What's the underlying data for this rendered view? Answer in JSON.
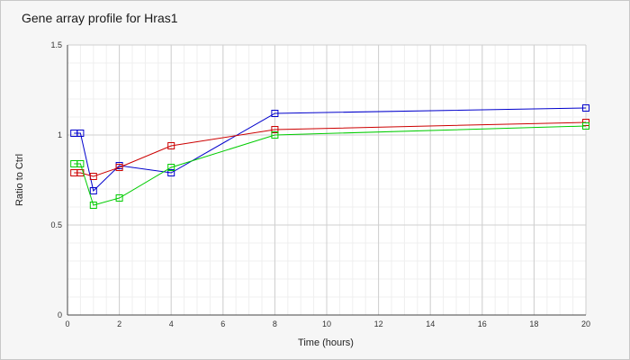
{
  "chart_data": {
    "type": "line",
    "title": "Gene array profile for Hras1",
    "xlabel": "Time (hours)",
    "ylabel": "Ratio to Ctrl",
    "xlim": [
      0,
      20
    ],
    "ylim": [
      0,
      1.5
    ],
    "x_ticks": [
      "0",
      "2",
      "4",
      "6",
      "8",
      "10",
      "12",
      "14",
      "16",
      "18",
      "20"
    ],
    "y_ticks": [
      "0",
      "0.5",
      "1",
      "1.5"
    ],
    "grid": true,
    "series": [
      {
        "color": "#0000cc",
        "x": [
          0.25,
          0.5,
          1,
          2,
          4,
          8,
          20
        ],
        "y": [
          1.01,
          1.01,
          0.69,
          0.83,
          0.79,
          1.12,
          1.15
        ]
      },
      {
        "color": "#cc0000",
        "x": [
          0.25,
          0.5,
          1,
          2,
          4,
          8,
          20
        ],
        "y": [
          0.79,
          0.79,
          0.77,
          0.82,
          0.94,
          1.03,
          1.07
        ]
      },
      {
        "color": "#00cc00",
        "x": [
          0.25,
          0.5,
          1,
          2,
          4,
          8,
          20
        ],
        "y": [
          0.84,
          0.84,
          0.61,
          0.65,
          0.82,
          1.0,
          1.05
        ]
      }
    ]
  }
}
